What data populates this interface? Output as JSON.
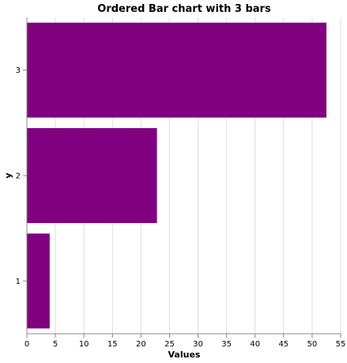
{
  "chart_data": {
    "type": "bar",
    "orientation": "horizontal",
    "title": "Ordered Bar chart with 3 bars",
    "xlabel": "Values",
    "ylabel": "y",
    "categories": [
      "1",
      "2",
      "3"
    ],
    "values": [
      4.0,
      22.8,
      52.5
    ],
    "xlim": [
      0,
      55
    ],
    "xticks": [
      0,
      5,
      10,
      15,
      20,
      25,
      30,
      35,
      40,
      45,
      50,
      55
    ],
    "grid": true,
    "bar_color": "#800080"
  }
}
